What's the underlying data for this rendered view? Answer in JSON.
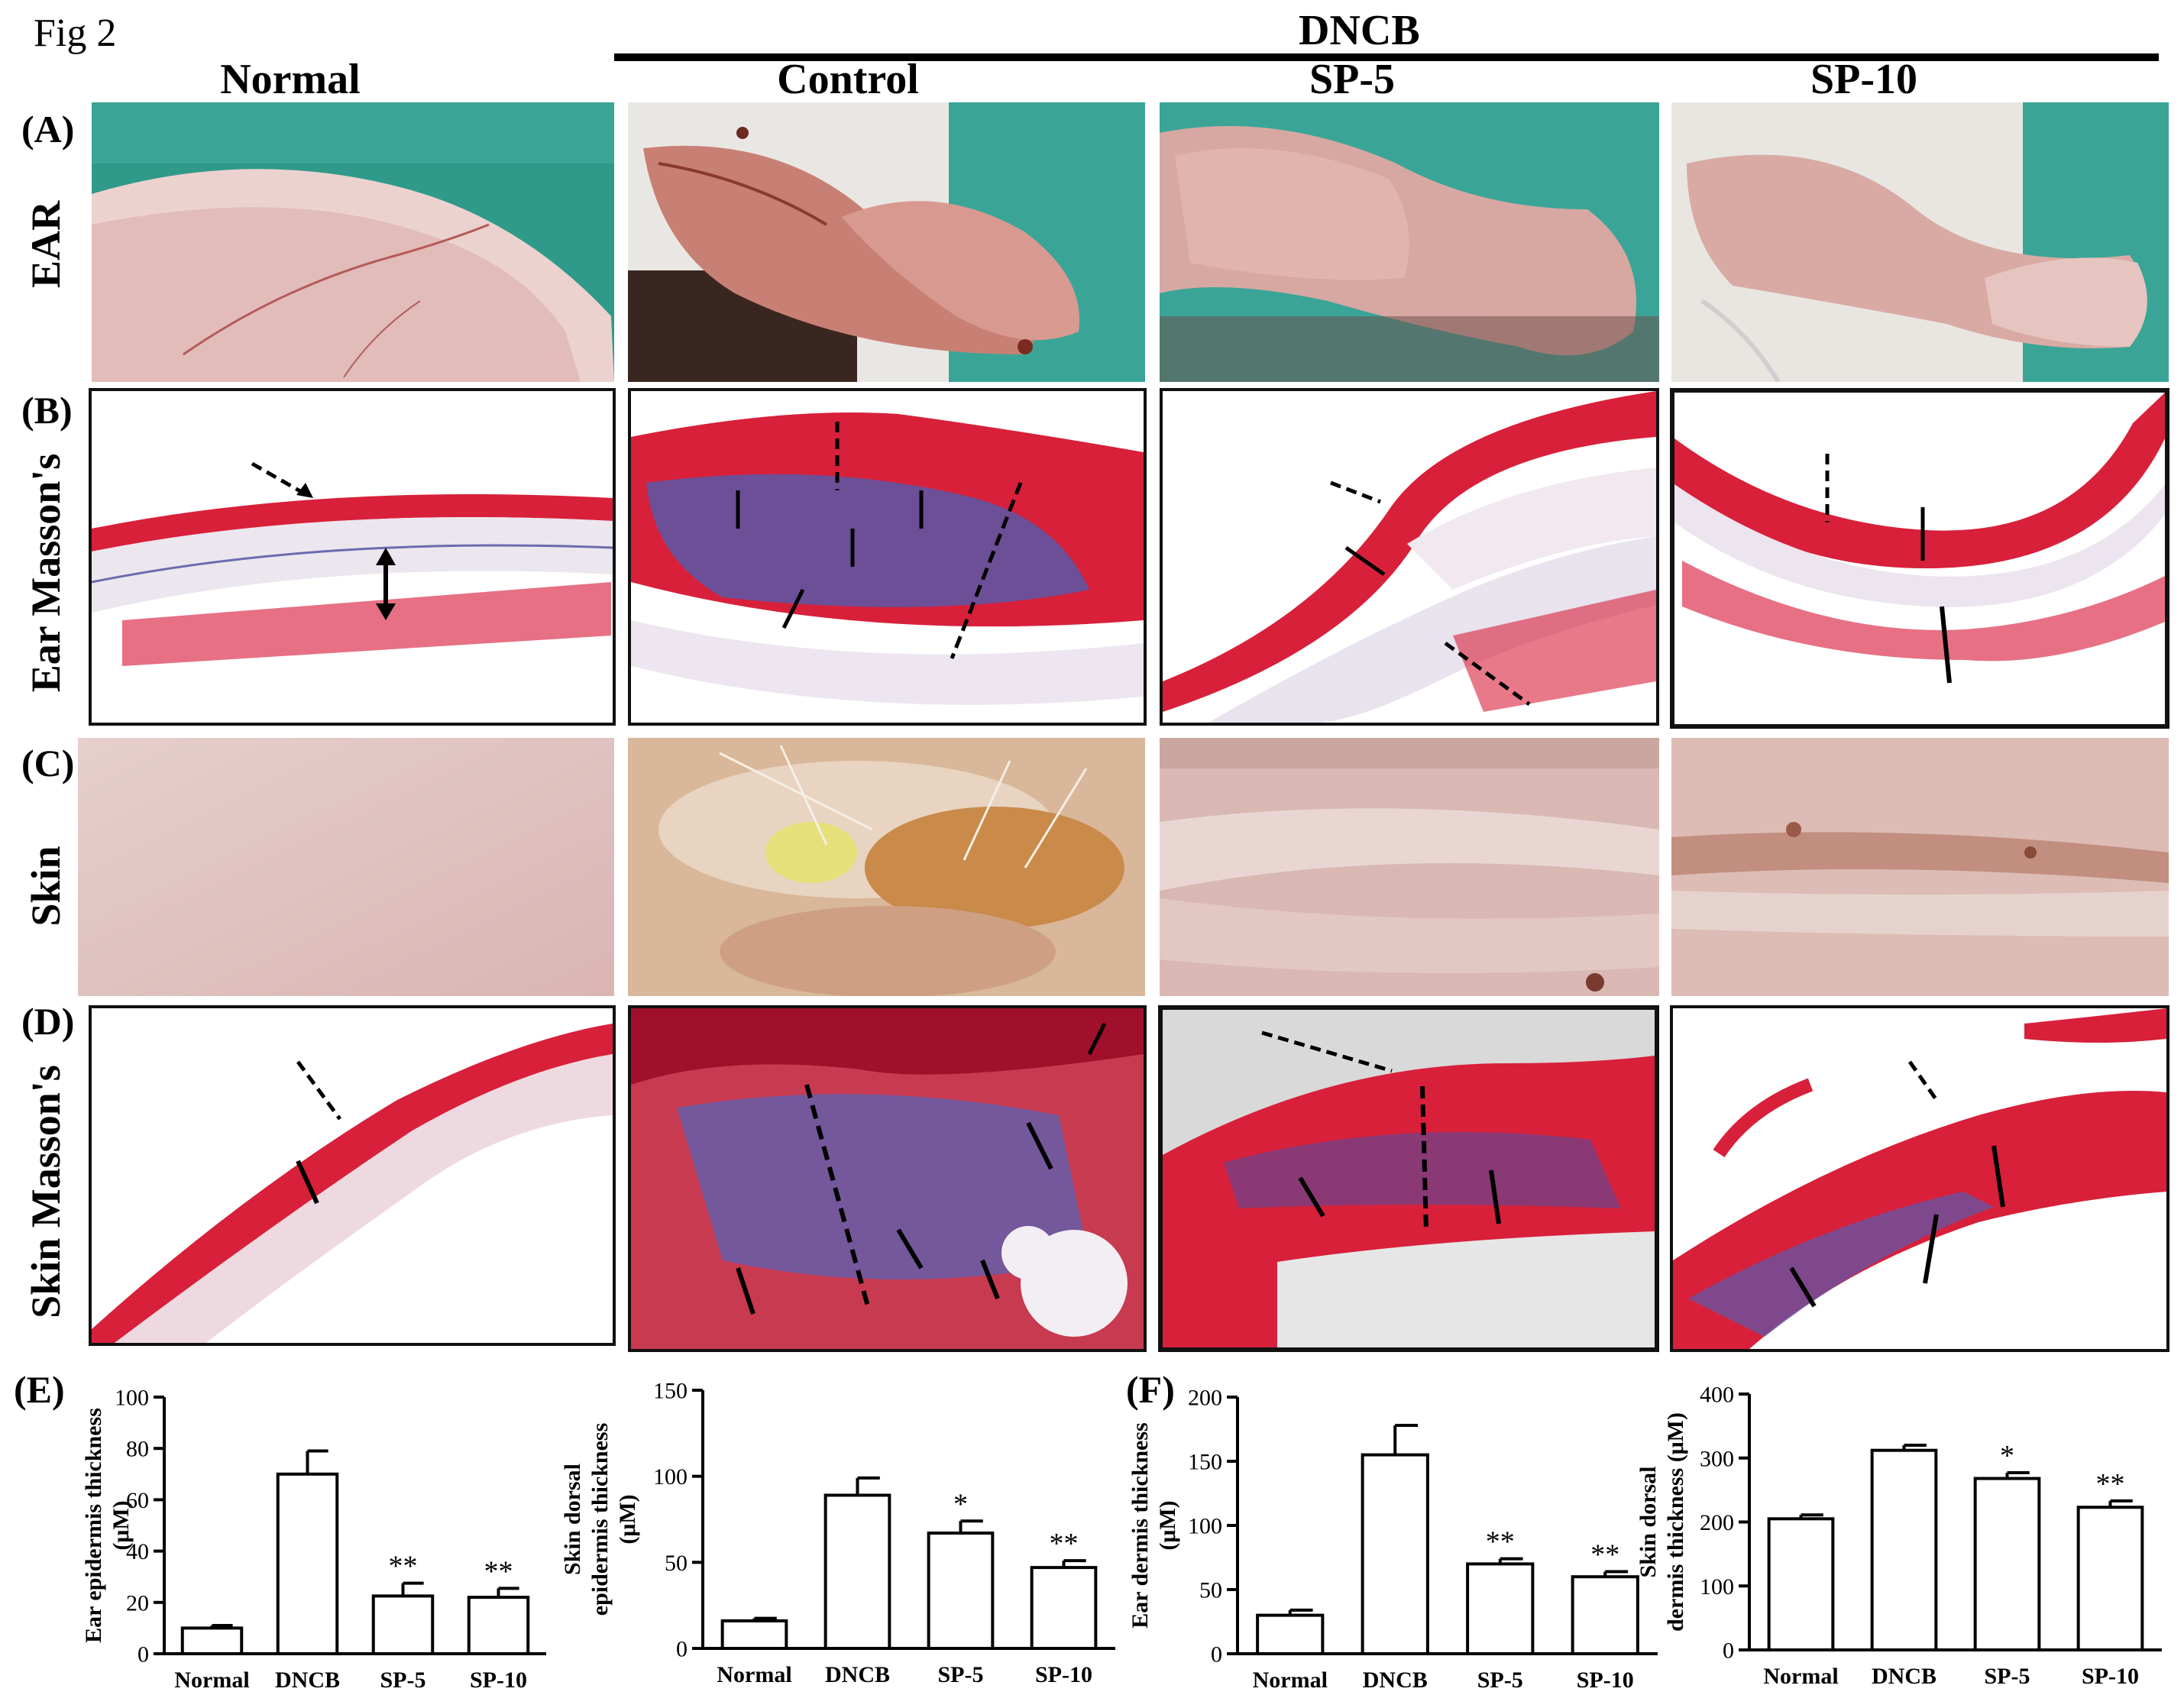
{
  "figure_label": "Fig 2",
  "group_header": "DNCB",
  "column_headers": [
    "Normal",
    "Control",
    "SP-5",
    "SP-10"
  ],
  "rows": [
    {
      "letter": "(A)",
      "label": "EAR",
      "kind": "photo-ear"
    },
    {
      "letter": "(B)",
      "label": "Ear Masson's",
      "kind": "histo-ear"
    },
    {
      "letter": "(C)",
      "label": "Skin",
      "kind": "photo-skin"
    },
    {
      "letter": "(D)",
      "label": "Skin Masson's",
      "kind": "histo-skin"
    }
  ],
  "chart_panel_letters": [
    "(E)",
    "(F)"
  ],
  "chart_data": [
    {
      "type": "bar",
      "categories": [
        "Normal",
        "DNCB",
        "SP-5",
        "SP-10"
      ],
      "values": [
        10,
        70,
        22.5,
        22
      ],
      "errors": [
        1,
        9,
        5,
        3.5
      ],
      "significance": [
        "",
        "",
        "**",
        "**"
      ],
      "ylabel": "Ear epidermis thickness\n(μM)",
      "ylim": [
        0,
        100
      ],
      "yticks": [
        "0",
        "20",
        "40",
        "60",
        "80",
        "100"
      ],
      "ytick_values": [
        0,
        20,
        40,
        60,
        80,
        100
      ]
    },
    {
      "type": "bar",
      "categories": [
        "Normal",
        "DNCB",
        "SP-5",
        "SP-10"
      ],
      "values": [
        16,
        89,
        67,
        47
      ],
      "errors": [
        1.5,
        10,
        7,
        4
      ],
      "significance": [
        "",
        "",
        "*",
        "**"
      ],
      "ylabel": "Skin dorsal\nepidermis thickness\n(μM)",
      "ylim": [
        0,
        150
      ],
      "yticks": [
        "0",
        "50",
        "100",
        "150"
      ],
      "ytick_values": [
        0,
        50,
        100,
        150
      ]
    },
    {
      "type": "bar",
      "categories": [
        "Normal",
        "DNCB",
        "SP-5",
        "SP-10"
      ],
      "values": [
        30,
        155,
        70,
        60
      ],
      "errors": [
        4,
        23,
        4,
        4
      ],
      "significance": [
        "",
        "",
        "**",
        "**"
      ],
      "ylabel": "Ear dermis thickness\n(μM)",
      "ylim": [
        0,
        200
      ],
      "yticks": [
        "0",
        "50",
        "100",
        "150",
        "200"
      ],
      "ytick_values": [
        0,
        50,
        100,
        150,
        200
      ]
    },
    {
      "type": "bar",
      "categories": [
        "Normal",
        "DNCB",
        "SP-5",
        "SP-10"
      ],
      "values": [
        205,
        312,
        268,
        223
      ],
      "errors": [
        6,
        8,
        9,
        10
      ],
      "significance": [
        "",
        "",
        "*",
        "**"
      ],
      "ylabel": "Skin dorsal\ndermis thickness (μM)",
      "ylim": [
        0,
        400
      ],
      "yticks": [
        "0",
        "100",
        "200",
        "300",
        "400"
      ],
      "ytick_values": [
        0,
        100,
        200,
        300,
        400
      ]
    }
  ],
  "colors": {
    "teal_bg": "#2f9a8a",
    "ear_pink": "#e9c2c0",
    "stain_red": "#d8203a",
    "stain_blue": "#4a4fb0",
    "skin_normal": "#e4c8c6",
    "skin_lesion": "#d7a06c"
  }
}
